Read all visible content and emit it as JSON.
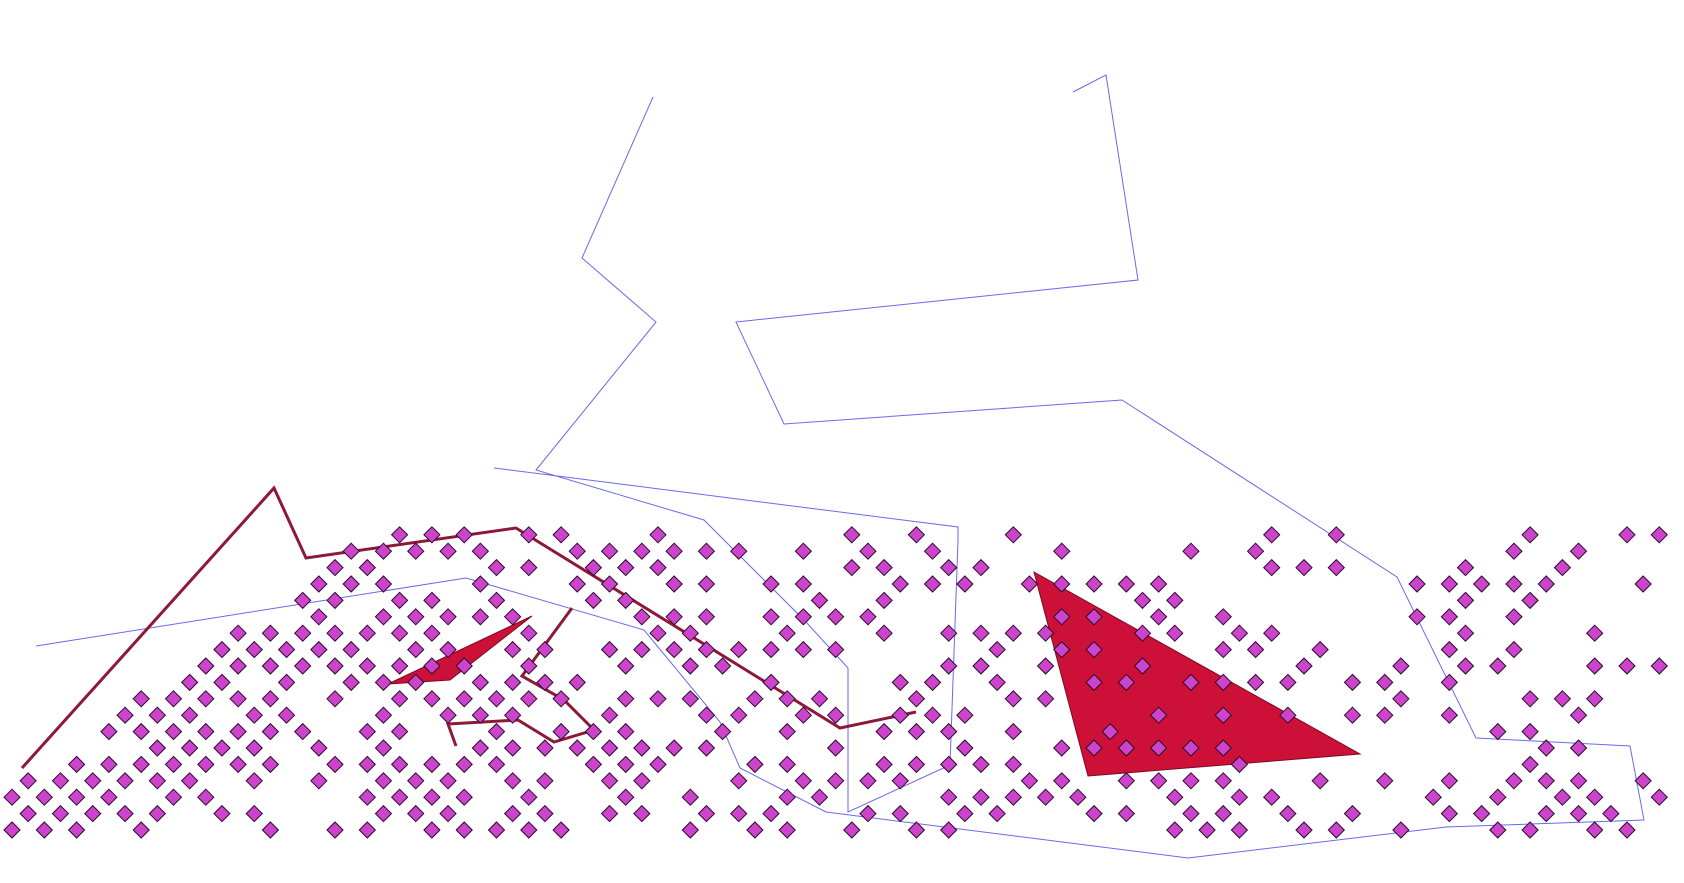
{
  "map": {
    "colors": {
      "background": "#ffffff",
      "boundary_line": "#6a6ae8",
      "road_line": "#8e1838",
      "polygon_fill": "#cc1038",
      "polygon_stroke": "#7a0a24",
      "point_fill": "#cc44cc",
      "point_stroke": "#2a0a2a"
    },
    "symbols": {
      "point": "diamond",
      "boundary": "thin-line",
      "road": "thick-line",
      "area": "filled-polygon"
    }
  }
}
